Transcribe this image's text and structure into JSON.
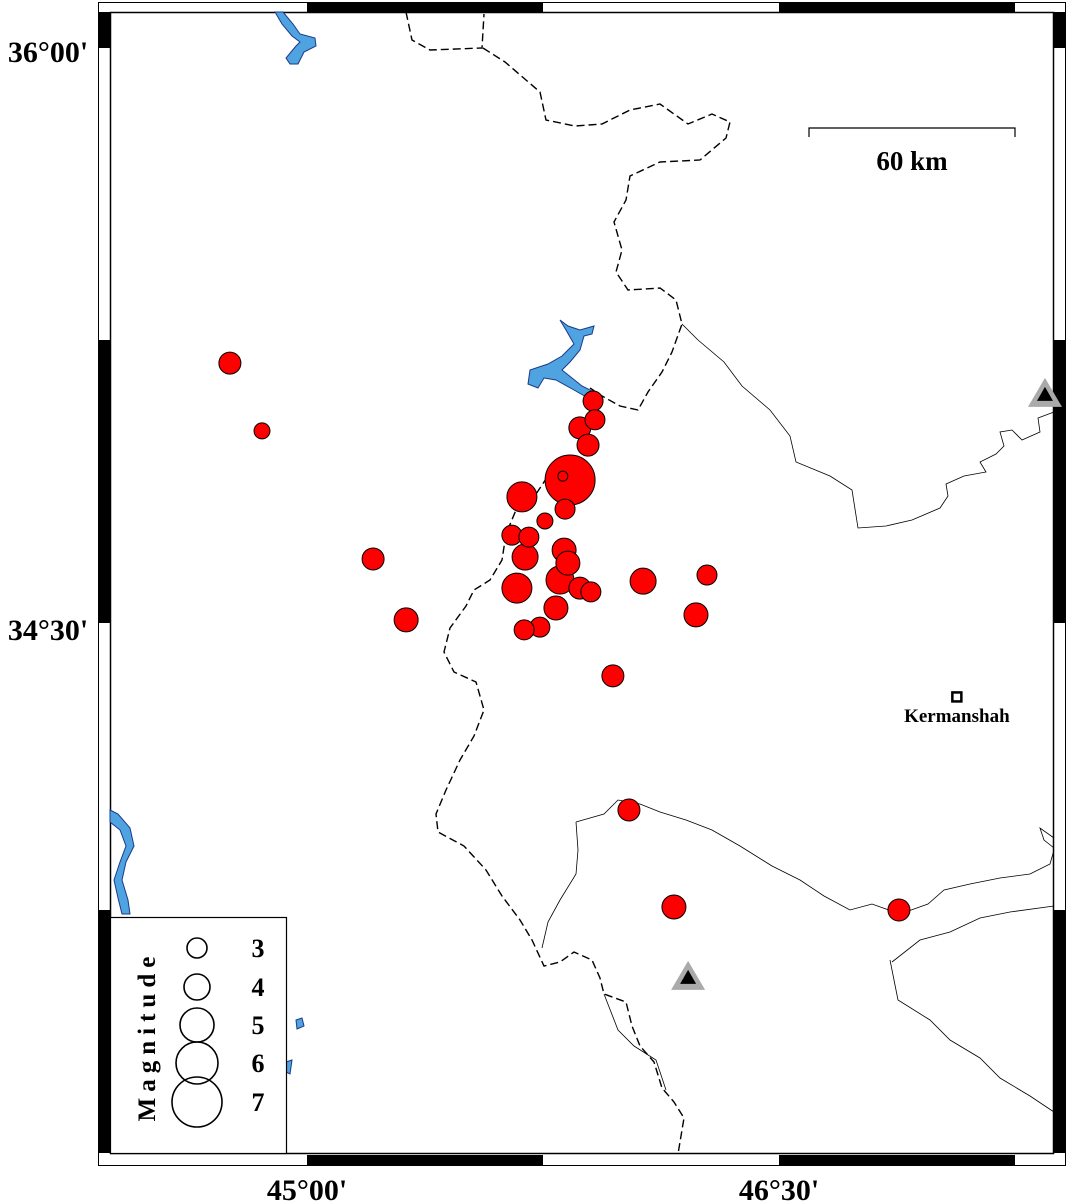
{
  "map": {
    "extent": {
      "lon": [
        44.33,
        47.38
      ],
      "lat": [
        33.21,
        36.1
      ]
    },
    "lon_ticks": [
      {
        "value": 45.0,
        "label": "45°00'"
      },
      {
        "value": 46.5,
        "label": "46°30'"
      }
    ],
    "lat_ticks": [
      {
        "value": 36.0,
        "label": "36°00'"
      },
      {
        "value": 34.5,
        "label": "34°30'"
      }
    ],
    "scale_bar": {
      "label": "60 km"
    },
    "colors": {
      "event": "#ff0000",
      "water": "#4fa3e0",
      "station_outer": "#aaaaaa",
      "station_inner": "#000000"
    },
    "city": {
      "name": "Kermanshah",
      "lon": 47.065,
      "lat": 34.307
    },
    "stations": [
      {
        "lon": 47.345,
        "lat": 35.095
      },
      {
        "lon": 46.211,
        "lat": 33.574
      }
    ],
    "legend": {
      "title": "Magnitude",
      "magnitudes": [
        {
          "label": "3",
          "value": 3
        },
        {
          "label": "4",
          "value": 4
        },
        {
          "label": "5",
          "value": 5
        },
        {
          "label": "6",
          "value": 6
        },
        {
          "label": "7",
          "value": 7
        }
      ]
    }
  },
  "chart_data": {
    "type": "scatter",
    "x_field": "longitude",
    "y_field": "latitude",
    "size_field": "magnitude",
    "events": [
      {
        "lon": 44.755,
        "lat": 35.178,
        "mag": 3.25
      },
      {
        "lon": 44.857,
        "lat": 35.001,
        "mag": 2.5
      },
      {
        "lon": 45.21,
        "lat": 34.667,
        "mag": 3.25
      },
      {
        "lon": 45.315,
        "lat": 34.508,
        "mag": 3.5
      },
      {
        "lon": 45.683,
        "lat": 34.829,
        "mag": 4.25
      },
      {
        "lon": 45.836,
        "lat": 34.873,
        "mag": 6.75
      },
      {
        "lon": 45.909,
        "lat": 35.079,
        "mag": 3.0
      },
      {
        "lon": 45.915,
        "lat": 35.03,
        "mag": 3.0
      },
      {
        "lon": 45.867,
        "lat": 35.009,
        "mag": 3.25
      },
      {
        "lon": 45.893,
        "lat": 34.964,
        "mag": 3.25
      },
      {
        "lon": 45.82,
        "lat": 34.797,
        "mag": 3.0
      },
      {
        "lon": 45.756,
        "lat": 34.766,
        "mag": 2.5
      },
      {
        "lon": 45.651,
        "lat": 34.729,
        "mag": 3.0
      },
      {
        "lon": 45.705,
        "lat": 34.724,
        "mag": 3.0
      },
      {
        "lon": 45.693,
        "lat": 34.672,
        "mag": 3.75
      },
      {
        "lon": 45.817,
        "lat": 34.69,
        "mag": 3.5
      },
      {
        "lon": 45.829,
        "lat": 34.656,
        "mag": 3.5
      },
      {
        "lon": 45.667,
        "lat": 34.591,
        "mag": 4.25
      },
      {
        "lon": 45.804,
        "lat": 34.612,
        "mag": 4.0
      },
      {
        "lon": 45.867,
        "lat": 34.591,
        "mag": 3.25
      },
      {
        "lon": 45.902,
        "lat": 34.581,
        "mag": 3.0
      },
      {
        "lon": 45.791,
        "lat": 34.539,
        "mag": 3.5
      },
      {
        "lon": 45.74,
        "lat": 34.489,
        "mag": 3.0
      },
      {
        "lon": 45.69,
        "lat": 34.482,
        "mag": 3.0
      },
      {
        "lon": 46.068,
        "lat": 34.609,
        "mag": 3.75
      },
      {
        "lon": 46.271,
        "lat": 34.625,
        "mag": 3.0
      },
      {
        "lon": 46.236,
        "lat": 34.521,
        "mag": 3.5
      },
      {
        "lon": 45.972,
        "lat": 34.362,
        "mag": 3.25
      },
      {
        "lon": 46.023,
        "lat": 34.012,
        "mag": 3.25
      },
      {
        "lon": 46.166,
        "lat": 33.759,
        "mag": 3.5
      },
      {
        "lon": 46.881,
        "lat": 33.751,
        "mag": 3.25
      },
      {
        "lon": 45.813,
        "lat": 34.883,
        "mag": 1.75
      }
    ]
  }
}
